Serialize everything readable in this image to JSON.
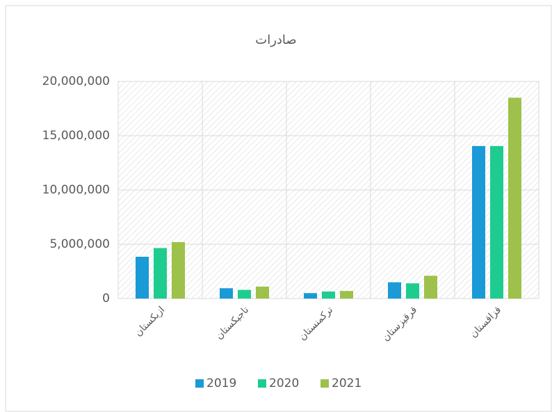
{
  "chart_data": {
    "type": "bar",
    "title": "صادرات",
    "categories": [
      "ازبکستان",
      "تاجیکستان",
      "ترکمنستان",
      "قرقیزستان",
      "قزاقستان"
    ],
    "series": [
      {
        "name": "2019",
        "color": "#1a9ad6",
        "values": [
          3850000,
          950000,
          500000,
          1500000,
          14050000
        ]
      },
      {
        "name": "2020",
        "color": "#1fcc8f",
        "values": [
          4650000,
          800000,
          650000,
          1400000,
          14050000
        ]
      },
      {
        "name": "2021",
        "color": "#9dc14a",
        "values": [
          5200000,
          1100000,
          700000,
          2100000,
          18500000
        ]
      }
    ],
    "ylim": [
      0,
      20000000
    ],
    "yticks": [
      0,
      {
        "value": 5000000,
        "label": "5,000,000"
      },
      {
        "value": 10000000,
        "label": "10,000,000"
      },
      {
        "value": 15000000,
        "label": "15,000,000"
      },
      {
        "value": 20000000,
        "label": "20,000,000"
      }
    ],
    "grid": true
  }
}
